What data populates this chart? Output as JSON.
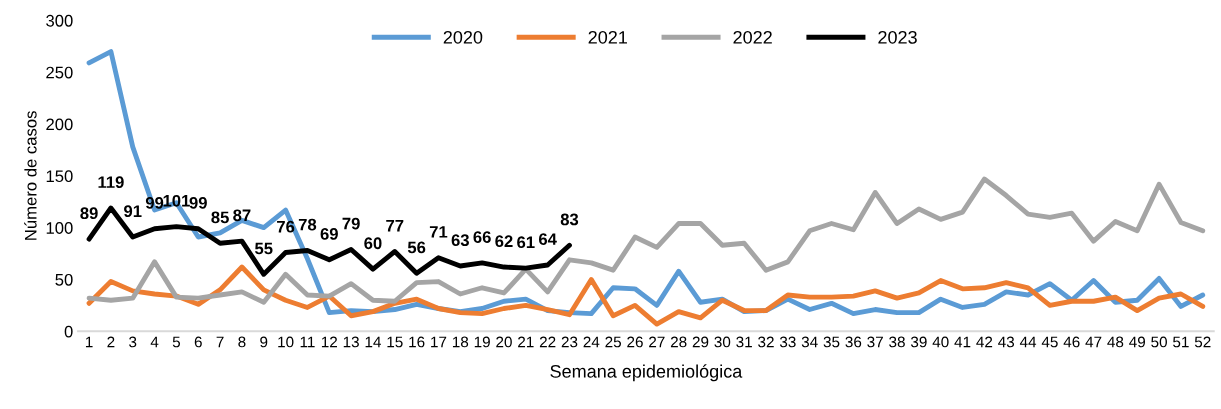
{
  "chart_data": {
    "type": "line",
    "xlabel": "Semana epidemiológica",
    "ylabel": "Número de casos",
    "categories": [
      "1",
      "2",
      "3",
      "4",
      "5",
      "6",
      "7",
      "8",
      "9",
      "10",
      "11",
      "12",
      "13",
      "14",
      "15",
      "16",
      "17",
      "18",
      "19",
      "20",
      "21",
      "22",
      "23",
      "24",
      "25",
      "26",
      "27",
      "28",
      "29",
      "30",
      "31",
      "32",
      "33",
      "34",
      "35",
      "36",
      "37",
      "38",
      "39",
      "40",
      "41",
      "42",
      "43",
      "44",
      "45",
      "46",
      "47",
      "48",
      "49",
      "50",
      "51",
      "52"
    ],
    "series": [
      {
        "name": "2020",
        "color": "#5b9bd5",
        "values": [
          259,
          270,
          178,
          117,
          124,
          91,
          95,
          107,
          100,
          117,
          70,
          18,
          20,
          19,
          21,
          26,
          22,
          19,
          22,
          29,
          31,
          20,
          18,
          17,
          42,
          41,
          25,
          58,
          28,
          31,
          19,
          20,
          31,
          21,
          27,
          17,
          21,
          18,
          18,
          31,
          23,
          26,
          38,
          35,
          46,
          30,
          49,
          28,
          30,
          51,
          24,
          35
        ]
      },
      {
        "name": "2021",
        "color": "#ed7d31",
        "values": [
          27,
          48,
          39,
          36,
          34,
          26,
          40,
          62,
          40,
          30,
          23,
          34,
          15,
          19,
          27,
          31,
          22,
          18,
          17,
          22,
          25,
          21,
          16,
          50,
          15,
          25,
          7,
          19,
          13,
          30,
          20,
          20,
          35,
          33,
          33,
          34,
          39,
          32,
          37,
          49,
          41,
          42,
          47,
          42,
          25,
          29,
          29,
          33,
          20,
          32,
          36,
          24
        ]
      },
      {
        "name": "2022",
        "color": "#a5a5a5",
        "values": [
          32,
          30,
          32,
          67,
          33,
          32,
          35,
          38,
          28,
          55,
          35,
          34,
          46,
          30,
          29,
          47,
          48,
          36,
          42,
          37,
          60,
          38,
          69,
          66,
          59,
          91,
          81,
          104,
          104,
          83,
          85,
          59,
          67,
          97,
          104,
          98,
          134,
          104,
          118,
          108,
          115,
          147,
          131,
          113,
          110,
          114,
          87,
          106,
          97,
          142,
          105,
          97
        ]
      },
      {
        "name": "2023",
        "color": "#000000",
        "values": [
          89,
          119,
          91,
          99,
          101,
          99,
          85,
          87,
          55,
          76,
          78,
          69,
          79,
          60,
          77,
          56,
          71,
          63,
          66,
          62,
          61,
          64,
          83,
          null,
          null,
          null,
          null,
          null,
          null,
          null,
          null,
          null,
          null,
          null,
          null,
          null,
          null,
          null,
          null,
          null,
          null,
          null,
          null,
          null,
          null,
          null,
          null,
          null,
          null,
          null,
          null,
          null
        ],
        "value_labels": [
          "89",
          "119",
          "91",
          "99",
          "101",
          "99",
          "85",
          "87",
          "55",
          "76",
          "78",
          "69",
          "79",
          "60",
          "77",
          "56",
          "71",
          "63",
          "66",
          "62",
          "61",
          "64",
          "83",
          null,
          null,
          null,
          null,
          null,
          null,
          null,
          null,
          null,
          null,
          null,
          null,
          null,
          null,
          null,
          null,
          null,
          null,
          null,
          null,
          null,
          null,
          null,
          null,
          null,
          null,
          null,
          null,
          null
        ]
      }
    ],
    "ylim": [
      0,
      300
    ],
    "yticks": [
      0,
      50,
      100,
      150,
      200,
      250,
      300
    ],
    "grid": false,
    "legend": "top",
    "marker": "none",
    "line_style": "solid"
  }
}
